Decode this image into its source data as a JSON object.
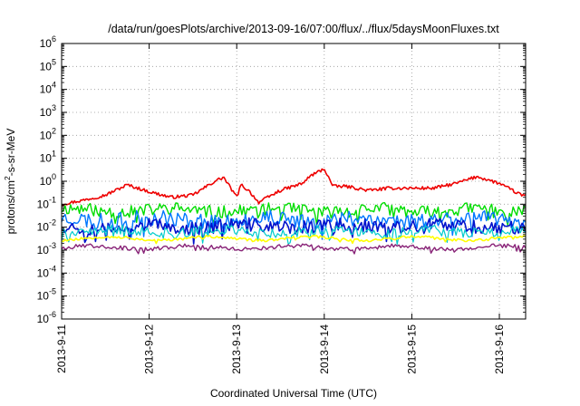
{
  "chart_data": {
    "type": "line",
    "title": "/data/run/goesPlots/archive/2013-09-16/07:00/flux/../flux/5daysMoonFluxes.txt",
    "xlabel": "Coordinated Universal Time (UTC)",
    "ylabel": {
      "prefix": "protons/cm",
      "superscript": "2",
      "suffix": "-s-sr-MeV"
    },
    "yscale": "log",
    "ylim": [
      1e-06,
      1000000.0
    ],
    "xlim": [
      0,
      5.3
    ],
    "grid": true,
    "legend": "none",
    "y_ticks": [
      {
        "exp": "-6",
        "value": 1e-06
      },
      {
        "exp": "-5",
        "value": 1e-05
      },
      {
        "exp": "-4",
        "value": 0.0001
      },
      {
        "exp": "-3",
        "value": 0.001
      },
      {
        "exp": "-2",
        "value": 0.01
      },
      {
        "exp": "-1",
        "value": 0.1
      },
      {
        "exp": "0",
        "value": 1
      },
      {
        "exp": "1",
        "value": 10
      },
      {
        "exp": "2",
        "value": 100
      },
      {
        "exp": "3",
        "value": 1000
      },
      {
        "exp": "4",
        "value": 10000
      },
      {
        "exp": "5",
        "value": 100000
      },
      {
        "exp": "6",
        "value": 1000000
      }
    ],
    "y_tick_base": "10",
    "x_ticks": [
      {
        "label": "2013-9-11",
        "day": 0
      },
      {
        "label": "2013-9-12",
        "day": 1
      },
      {
        "label": "2013-9-13",
        "day": 2
      },
      {
        "label": "2013-9-14",
        "day": 3
      },
      {
        "label": "2013-9-15",
        "day": 4
      },
      {
        "label": "2013-9-16",
        "day": 5
      }
    ],
    "series": [
      {
        "color": "#ee0000",
        "width": 1.6,
        "mode": "red",
        "x": [
          0,
          0.25,
          0.5,
          0.75,
          1.0,
          1.25,
          1.5,
          1.75,
          1.85,
          2.0,
          2.05,
          2.15,
          2.25,
          2.5,
          2.75,
          2.85,
          3.0,
          3.1,
          3.25,
          3.5,
          3.75,
          4.0,
          4.25,
          4.5,
          4.75,
          5.0,
          5.25,
          5.3
        ],
        "y": [
          0.1,
          0.15,
          0.25,
          0.7,
          0.35,
          0.2,
          0.25,
          1.0,
          1.5,
          0.2,
          0.7,
          0.35,
          0.12,
          0.4,
          0.8,
          1.8,
          3.5,
          0.6,
          0.6,
          0.4,
          0.5,
          0.5,
          0.5,
          0.8,
          1.6,
          0.8,
          0.25,
          0.25
        ]
      },
      {
        "color": "#00dd00",
        "width": 1.4,
        "base": 0.055,
        "amp": 0.55,
        "seed": 11
      },
      {
        "color": "#0077ff",
        "width": 1.4,
        "base": 0.022,
        "amp": 0.7,
        "seed": 23
      },
      {
        "color": "#0011cc",
        "width": 1.6,
        "base": 0.011,
        "amp": 0.6,
        "seed": 37
      },
      {
        "color": "#00cccc",
        "width": 1.2,
        "base": 0.0065,
        "amp": 0.45,
        "seed": 41
      },
      {
        "color": "#ffff00",
        "width": 1.6,
        "base": 0.0032,
        "amp": 0.12,
        "seed": 53
      },
      {
        "color": "#882277",
        "width": 1.4,
        "base": 0.0013,
        "amp": 0.18,
        "seed": 67
      }
    ]
  }
}
